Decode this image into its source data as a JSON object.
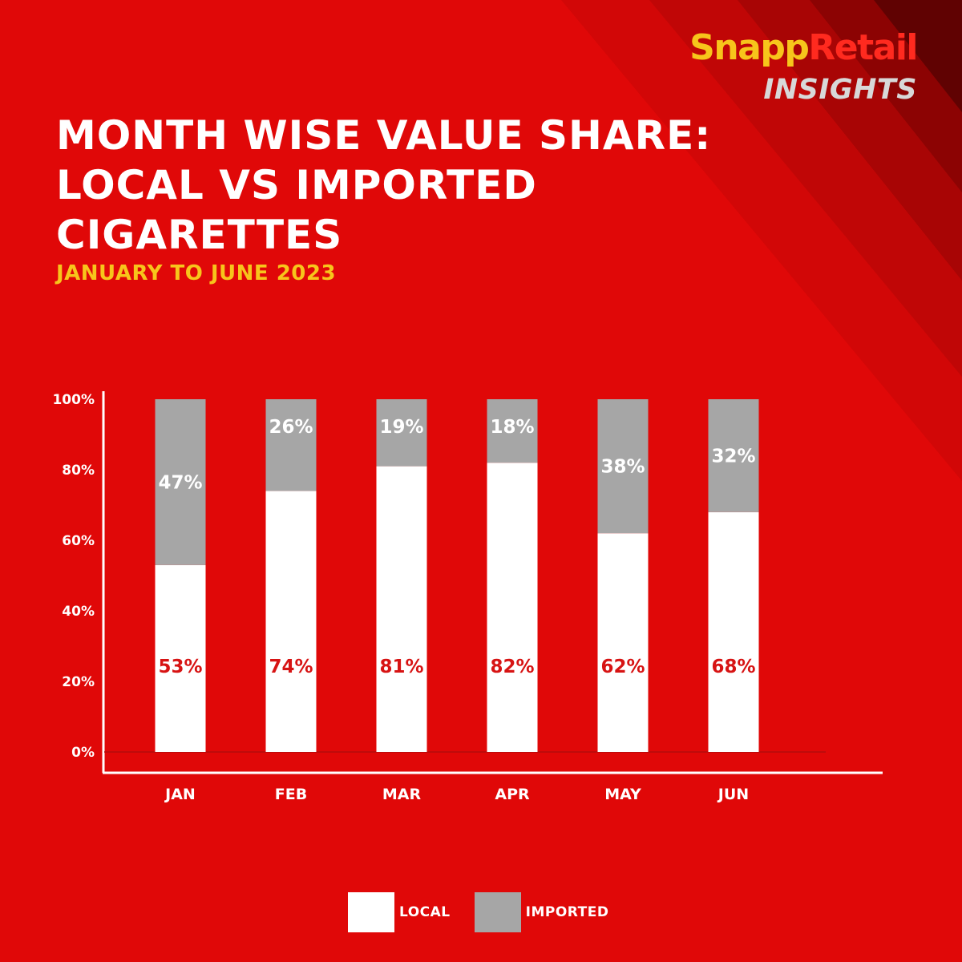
{
  "brand": {
    "name_part1": "Snapp",
    "name_part2": "Retail",
    "tagline": "INSIGHTS"
  },
  "title": "MONTH WISE VALUE SHARE: LOCAL VS IMPORTED CIGARETTES",
  "subtitle": "JANUARY TO JUNE 2023",
  "colors": {
    "background": "#e00808",
    "local": "#ffffff",
    "imported": "#a6a6a6",
    "local_label": "#d71313",
    "imported_label": "#ffffff",
    "accent": "#f7c51b"
  },
  "legend": [
    {
      "label": "LOCAL",
      "color": "#ffffff"
    },
    {
      "label": "IMPORTED",
      "color": "#a6a6a6"
    }
  ],
  "chart_data": {
    "type": "bar",
    "stacked": true,
    "categories": [
      "JAN",
      "FEB",
      "MAR",
      "APR",
      "MAY",
      "JUN"
    ],
    "series": [
      {
        "name": "LOCAL",
        "values": [
          53,
          74,
          81,
          82,
          62,
          68
        ],
        "labels": [
          "53%",
          "74%",
          "81%",
          "82%",
          "62%",
          "68%"
        ]
      },
      {
        "name": "IMPORTED",
        "values": [
          47,
          26,
          19,
          18,
          38,
          32
        ],
        "labels": [
          "47%",
          "26%",
          "19%",
          "18%",
          "38%",
          "32%"
        ]
      }
    ],
    "y_ticks": [
      "0%",
      "20%",
      "40%",
      "60%",
      "80%",
      "100%"
    ],
    "ylim": [
      0,
      100
    ],
    "legend_position": "bottom",
    "grid": false
  }
}
